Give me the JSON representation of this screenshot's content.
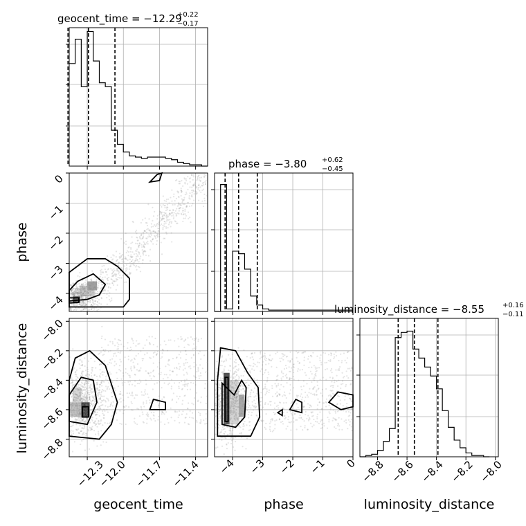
{
  "chart_data": {
    "type": "corner",
    "parameters": [
      "geocent_time",
      "phase",
      "luminosity_distance"
    ],
    "titles": [
      {
        "label": "geocent_time = −12.29",
        "plus": "+0.22",
        "minus": "−0.17"
      },
      {
        "label": "phase = −3.80",
        "plus": "+0.62",
        "minus": "−0.45"
      },
      {
        "label": "luminosity_distance = −8.55",
        "plus": "+0.16",
        "minus": "−0.11"
      }
    ],
    "axes": {
      "geocent_time": {
        "range": [
          -12.45,
          -11.3
        ],
        "ticks": [
          -12.3,
          -12.0,
          -11.7,
          -11.4
        ],
        "tick_labels": [
          "−12.3",
          "−12.0",
          "−11.7",
          "−11.4"
        ]
      },
      "phase": {
        "range": [
          -4.6,
          0
        ],
        "ticks": [
          -4,
          -3,
          -2,
          -1,
          0
        ],
        "tick_labels": [
          "−4",
          "−3",
          "−2",
          "−1",
          "0"
        ]
      },
      "luminosity_distance": {
        "range": [
          -8.92,
          -7.98
        ],
        "ticks": [
          -8.8,
          -8.6,
          -8.4,
          -8.2,
          -8.0
        ],
        "tick_labels": [
          "−8.8",
          "−8.6",
          "−8.4",
          "−8.2",
          "−8.0"
        ]
      }
    },
    "histograms": {
      "geocent_time": {
        "bin_edges": [
          -12.45,
          -12.4,
          -12.35,
          -12.3,
          -12.25,
          -12.2,
          -12.15,
          -12.1,
          -12.05,
          -12.0,
          -11.95,
          -11.9,
          -11.85,
          -11.8,
          -11.75,
          -11.7,
          -11.65,
          -11.6,
          -11.55,
          -11.5,
          -11.45,
          -11.4,
          -11.35,
          -11.3
        ],
        "counts": [
          0.8,
          0.99,
          0.62,
          1.05,
          0.82,
          0.65,
          0.62,
          0.28,
          0.17,
          0.11,
          0.08,
          0.07,
          0.06,
          0.07,
          0.07,
          0.07,
          0.06,
          0.05,
          0.03,
          0.02,
          0.01,
          0.01,
          0.0
        ],
        "quantiles": [
          -12.46,
          -12.29,
          -12.07
        ]
      },
      "phase": {
        "bin_edges": [
          -4.6,
          -4.4,
          -4.2,
          -4.0,
          -3.8,
          -3.6,
          -3.4,
          -3.2,
          -3.0,
          -2.8,
          -2.6,
          -2.4,
          -2.2,
          -2.0,
          -1.8,
          -1.6,
          -1.4,
          -1.2,
          -1.0,
          -0.8,
          -0.6,
          -0.4,
          -0.2,
          0.0
        ],
        "counts": [
          0.0,
          0.99,
          0.02,
          0.47,
          0.45,
          0.33,
          0.12,
          0.05,
          0.02,
          0.01,
          0.01,
          0.01,
          0.01,
          0.01,
          0.01,
          0.01,
          0.01,
          0.01,
          0.01,
          0.01,
          0.01,
          0.01,
          0.01
        ],
        "quantiles": [
          -4.25,
          -3.8,
          -3.18
        ]
      },
      "luminosity_distance": {
        "bin_edges": [
          -8.92,
          -8.88,
          -8.84,
          -8.8,
          -8.76,
          -8.72,
          -8.68,
          -8.64,
          -8.6,
          -8.56,
          -8.52,
          -8.48,
          -8.44,
          -8.4,
          -8.36,
          -8.32,
          -8.28,
          -8.24,
          -8.2,
          -8.16,
          -8.12,
          -8.08,
          -8.04
        ],
        "counts": [
          0.0,
          0.01,
          0.02,
          0.05,
          0.12,
          0.22,
          0.93,
          0.97,
          0.98,
          0.84,
          0.77,
          0.7,
          0.63,
          0.53,
          0.36,
          0.23,
          0.13,
          0.07,
          0.03,
          0.01,
          0.01,
          0.0
        ],
        "quantiles": [
          -8.66,
          -8.55,
          -8.39
        ]
      }
    },
    "scatter_pairs": [
      [
        "geocent_time",
        "phase"
      ],
      [
        "geocent_time",
        "luminosity_distance"
      ],
      [
        "phase",
        "luminosity_distance"
      ]
    ],
    "grid": true
  }
}
